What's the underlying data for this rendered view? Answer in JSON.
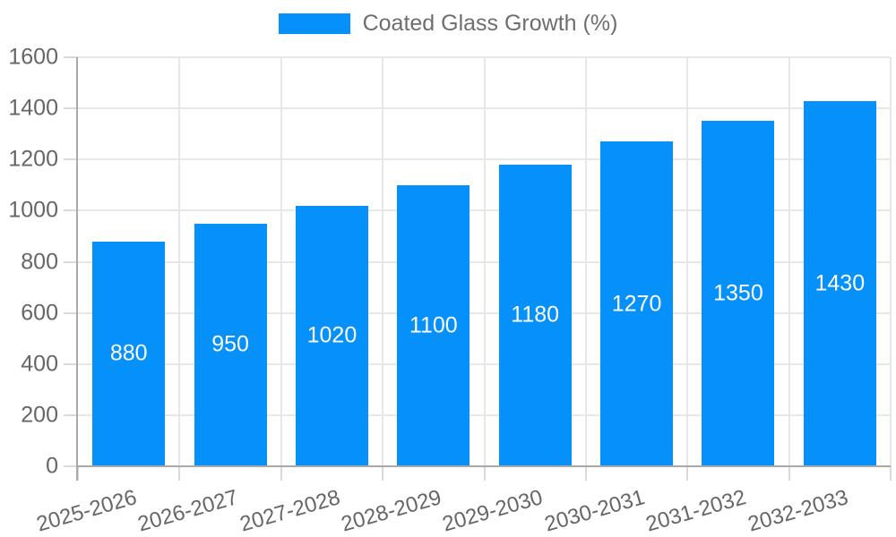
{
  "chart_data": {
    "type": "bar",
    "title": "",
    "legend": {
      "label": "Coated Glass Growth (%)",
      "position": "top"
    },
    "categories": [
      "2025-2026",
      "2026-2027",
      "2027-2028",
      "2028-2029",
      "2029-2030",
      "2030-2031",
      "2031-2032",
      "2032-2033"
    ],
    "series": [
      {
        "name": "Coated Glass Growth (%)",
        "values": [
          880,
          950,
          1020,
          1100,
          1180,
          1270,
          1350,
          1430
        ]
      }
    ],
    "value_labels": [
      "880",
      "950",
      "1020",
      "1100",
      "1180",
      "1270",
      "1350",
      "1430"
    ],
    "y_ticks": [
      "0",
      "200",
      "400",
      "600",
      "800",
      "1000",
      "1200",
      "1400",
      "1600"
    ],
    "xlabel": "",
    "ylabel": "",
    "ylim": [
      0,
      1600
    ],
    "ytick_step": 200,
    "grid": "on",
    "legend_position": "top-center",
    "x_label_rotation_deg": -16,
    "colors": {
      "bar": "#0590FA",
      "bar_value_text": "#ffffff",
      "grid": "#e7e7e7",
      "tick_mark": "#d9d9d9",
      "axis_line": "#a9a9a9",
      "tick_text": "#666666",
      "legend_text": "#6e6e6e",
      "background": "#ffffff"
    }
  }
}
